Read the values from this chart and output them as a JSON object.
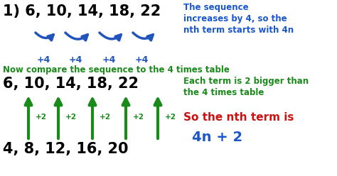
{
  "bg_color": "#ffffff",
  "title_number": "1) ",
  "sequence1": "6, 10, 14, 18, 22",
  "right_text_line1": "The sequence",
  "right_text_line2": "increases by 4, so the",
  "right_text_line3": "nth term starts with 4n",
  "plus4_labels": [
    "+4",
    "+4",
    "+4",
    "+4"
  ],
  "green_text": "Now compare the sequence to the 4 times table",
  "sequence2": "6, 10, 14, 18, 22",
  "sequence3": "4, 8, 12, 16, 20",
  "plus2_labels": [
    "+2",
    "+2",
    "+2",
    "+2",
    "+2"
  ],
  "right_text2_line1": "Each term is 2 bigger than",
  "right_text2_line2": "the 4 times table",
  "final_line1": "So the nth term is",
  "final_line2": "4n + 2",
  "black_color": "#000000",
  "blue_color": "#1a56cc",
  "green_color": "#1a8a1a",
  "red_color": "#cc1111",
  "arrow_blue": "#2255bb",
  "arrow_green": "#1a8a1a"
}
